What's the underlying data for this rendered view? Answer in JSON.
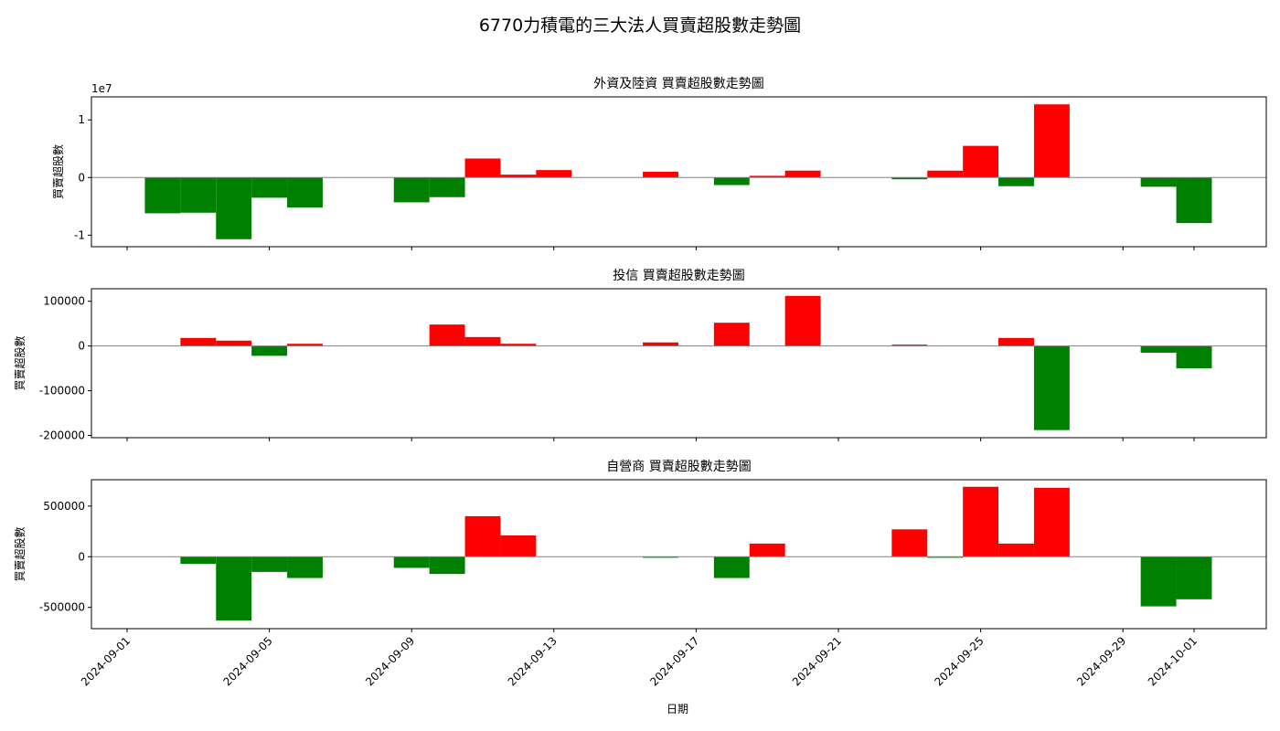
{
  "title": "6770力積電的三大法人買賣超股數走勢圖",
  "xlabel": "日期",
  "colors": {
    "positive": "#ff0000",
    "negative": "#008000",
    "zero_line": "#808080"
  },
  "x_tick_labels": [
    "2024-09-01",
    "2024-09-05",
    "2024-09-09",
    "2024-09-13",
    "2024-09-17",
    "2024-09-21",
    "2024-09-25",
    "2024-09-29",
    "2024-10-01"
  ],
  "chart_data": [
    {
      "type": "bar",
      "title": "外資及陸資 買賣超股數走勢圖",
      "ylabel": "買賣超股數",
      "offset_label": "1e7",
      "ylim": [
        -1.2,
        1.4
      ],
      "yticks": [
        -1,
        0,
        1
      ],
      "ytick_labels": [
        "-1",
        "0",
        "1"
      ],
      "x": [
        "2024-09-02",
        "2024-09-03",
        "2024-09-04",
        "2024-09-05",
        "2024-09-06",
        "2024-09-09",
        "2024-09-10",
        "2024-09-11",
        "2024-09-12",
        "2024-09-13",
        "2024-09-16",
        "2024-09-18",
        "2024-09-19",
        "2024-09-20",
        "2024-09-23",
        "2024-09-24",
        "2024-09-25",
        "2024-09-26",
        "2024-09-27",
        "2024-09-30",
        "2024-10-01"
      ],
      "values": [
        -0.62,
        -0.61,
        -1.07,
        -0.35,
        -0.52,
        -0.43,
        -0.34,
        0.33,
        0.05,
        0.13,
        0.1,
        -0.13,
        0.03,
        0.12,
        -0.03,
        0.12,
        0.55,
        -0.15,
        1.27,
        -0.16,
        -0.79
      ]
    },
    {
      "type": "bar",
      "title": "投信 買賣超股數走勢圖",
      "ylabel": "買賣超股數",
      "ylim": [
        -205000,
        128000
      ],
      "yticks": [
        -200000,
        -100000,
        0,
        100000
      ],
      "ytick_labels": [
        "-200000",
        "-100000",
        "0",
        "100000"
      ],
      "x": [
        "2024-09-03",
        "2024-09-04",
        "2024-09-05",
        "2024-09-06",
        "2024-09-10",
        "2024-09-11",
        "2024-09-12",
        "2024-09-16",
        "2024-09-18",
        "2024-09-20",
        "2024-09-23",
        "2024-09-26",
        "2024-09-27",
        "2024-09-30",
        "2024-10-01"
      ],
      "values": [
        18000,
        12000,
        -22000,
        5000,
        48000,
        20000,
        5000,
        8000,
        52000,
        112000,
        3000,
        18000,
        -188000,
        -15000,
        -50000
      ]
    },
    {
      "type": "bar",
      "title": "自營商 買賣超股數走勢圖",
      "ylabel": "買賣超股數",
      "ylim": [
        -710000,
        760000
      ],
      "yticks": [
        -500000,
        0,
        500000
      ],
      "ytick_labels": [
        "-500000",
        "0",
        "500000"
      ],
      "x": [
        "2024-09-03",
        "2024-09-04",
        "2024-09-05",
        "2024-09-06",
        "2024-09-09",
        "2024-09-10",
        "2024-09-11",
        "2024-09-12",
        "2024-09-16",
        "2024-09-18",
        "2024-09-19",
        "2024-09-23",
        "2024-09-24",
        "2024-09-25",
        "2024-09-26",
        "2024-09-27",
        "2024-09-30",
        "2024-10-01"
      ],
      "values": [
        -70000,
        -630000,
        -150000,
        -210000,
        -110000,
        -170000,
        400000,
        210000,
        -10000,
        -210000,
        130000,
        270000,
        -10000,
        690000,
        130000,
        680000,
        -490000,
        -420000
      ]
    }
  ]
}
